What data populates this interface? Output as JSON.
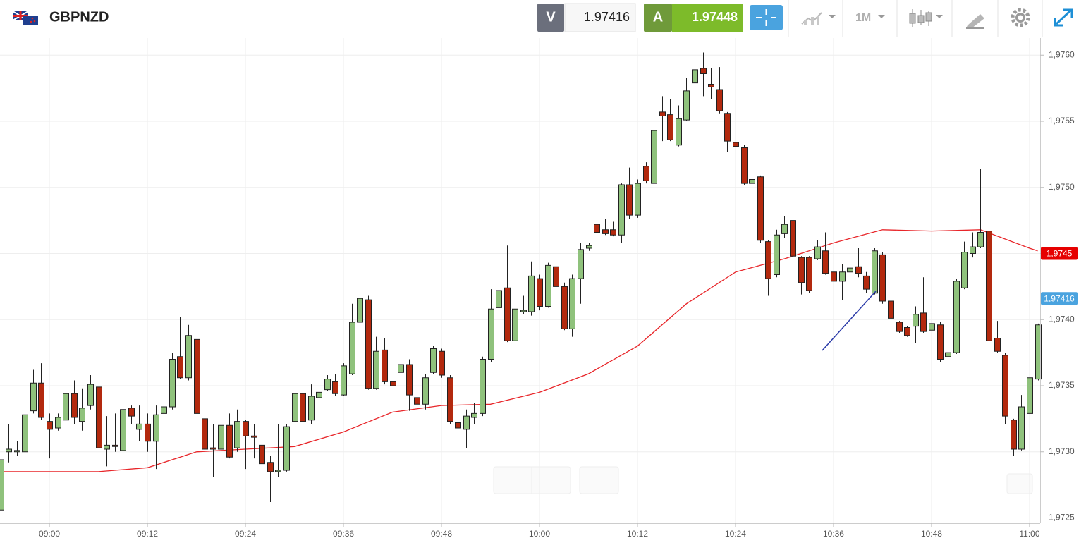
{
  "header": {
    "symbol": "GBPNZD",
    "bid_label": "V",
    "bid": "1.97416",
    "ask_label": "A",
    "ask": "1.97448",
    "timeframe": "1M"
  },
  "chart_data": {
    "type": "candlestick",
    "x": [
      "08:54",
      "08:55",
      "08:56",
      "08:57",
      "08:58",
      "08:59",
      "09:00",
      "09:01",
      "09:02",
      "09:03",
      "09:04",
      "09:05",
      "09:06",
      "09:07",
      "09:08",
      "09:09",
      "09:10",
      "09:11",
      "09:12",
      "09:13",
      "09:14",
      "09:15",
      "09:16",
      "09:17",
      "09:18",
      "09:19",
      "09:20",
      "09:21",
      "09:22",
      "09:23",
      "09:24",
      "09:25",
      "09:26",
      "09:27",
      "09:28",
      "09:29",
      "09:30",
      "09:31",
      "09:32",
      "09:33",
      "09:34",
      "09:35",
      "09:36",
      "09:37",
      "09:38",
      "09:39",
      "09:40",
      "09:41",
      "09:42",
      "09:43",
      "09:44",
      "09:45",
      "09:46",
      "09:47",
      "09:48",
      "09:49",
      "09:50",
      "09:51",
      "09:52",
      "09:53",
      "09:54",
      "09:55",
      "09:56",
      "09:57",
      "09:58",
      "09:59",
      "10:00",
      "10:01",
      "10:02",
      "10:03",
      "10:04",
      "10:05",
      "10:06",
      "10:07",
      "10:08",
      "10:09",
      "10:10",
      "10:11",
      "10:12",
      "10:13",
      "10:14",
      "10:15",
      "10:16",
      "10:17",
      "10:18",
      "10:19",
      "10:20",
      "10:21",
      "10:22",
      "10:23",
      "10:24",
      "10:25",
      "10:26",
      "10:27",
      "10:28",
      "10:29",
      "10:30",
      "10:31",
      "10:32",
      "10:33",
      "10:34",
      "10:35",
      "10:36",
      "10:37",
      "10:38",
      "10:39",
      "10:40",
      "10:41",
      "10:42",
      "10:43",
      "10:44",
      "10:45",
      "10:46",
      "10:47",
      "10:48",
      "10:49",
      "10:50",
      "10:51",
      "10:52",
      "10:53",
      "10:54",
      "10:55",
      "10:56",
      "10:57",
      "10:58",
      "10:59",
      "11:00",
      "11:01"
    ],
    "open": [
      1.97256,
      1.973,
      1.973,
      1.973,
      1.97331,
      1.97352,
      1.97323,
      1.97318,
      1.97324,
      1.97344,
      1.97323,
      1.97335,
      1.97349,
      1.97302,
      1.97305,
      1.97301,
      1.97333,
      1.97317,
      1.97321,
      1.97308,
      1.97329,
      1.97334,
      1.97372,
      1.97356,
      1.97385,
      1.97325,
      1.97303,
      1.97302,
      1.9732,
      1.97303,
      1.97323,
      1.97312,
      1.97305,
      1.97292,
      1.97285,
      1.97286,
      1.97323,
      1.97344,
      1.97324,
      1.97341,
      1.97347,
      1.97353,
      1.97343,
      1.97359,
      1.97398,
      1.97415,
      1.97348,
      1.97377,
      1.97353,
      1.9736,
      1.97366,
      1.97341,
      1.97336,
      1.9736,
      1.97376,
      1.97356,
      1.97322,
      1.97317,
      1.97326,
      1.97329,
      1.9737,
      1.97409,
      1.97424,
      1.97384,
      1.97406,
      1.97406,
      1.97431,
      1.9741,
      1.9744,
      1.97425,
      1.97393,
      1.97431,
      1.97454,
      1.97472,
      1.97468,
      1.97468,
      1.97464,
      1.97502,
      1.97479,
      1.97516,
      1.97503,
      1.97557,
      1.97555,
      1.97532,
      1.97551,
      1.97579,
      1.9759,
      1.97578,
      1.97574,
      1.97556,
      1.97534,
      1.9753,
      1.97503,
      1.97508,
      1.97459,
      1.97434,
      1.97465,
      1.97475,
      1.97447,
      1.97447,
      1.97446,
      1.97452,
      1.97436,
      1.97429,
      1.97436,
      1.9744,
      1.97433,
      1.9742,
      1.97449,
      1.97414,
      1.97398,
      1.97394,
      1.97395,
      1.97405,
      1.97392,
      1.97396,
      1.97372,
      1.97375,
      1.97424,
      1.9745,
      1.97455,
      1.97467,
      1.97386,
      1.97373,
      1.97324,
      1.97302,
      1.97329,
      1.97355
    ],
    "high": [
      1.97295,
      1.97321,
      1.97308,
      1.97329,
      1.97362,
      1.97367,
      1.97329,
      1.97329,
      1.97364,
      1.97354,
      1.97348,
      1.97358,
      1.97351,
      1.97327,
      1.97329,
      1.97333,
      1.97335,
      1.97335,
      1.97329,
      1.97335,
      1.97343,
      1.97375,
      1.97402,
      1.97396,
      1.97387,
      1.97327,
      1.97321,
      1.97327,
      1.97329,
      1.97332,
      1.97324,
      1.97321,
      1.97311,
      1.97297,
      1.97321,
      1.97321,
      1.97359,
      1.97348,
      1.97351,
      1.97354,
      1.97358,
      1.97359,
      1.97367,
      1.97412,
      1.97423,
      1.97418,
      1.97387,
      1.97386,
      1.97372,
      1.97371,
      1.9737,
      1.97359,
      1.97359,
      1.9738,
      1.97378,
      1.97358,
      1.97332,
      1.97332,
      1.97337,
      1.97372,
      1.97423,
      1.97434,
      1.97456,
      1.9741,
      1.97418,
      1.97444,
      1.97434,
      1.97443,
      1.97483,
      1.97428,
      1.97434,
      1.97458,
      1.97458,
      1.97475,
      1.97476,
      1.97474,
      1.97503,
      1.97515,
      1.97506,
      1.97519,
      1.97554,
      1.97569,
      1.97567,
      1.97562,
      1.97583,
      1.97598,
      1.97602,
      1.9759,
      1.97591,
      1.97557,
      1.97544,
      1.97532,
      1.97507,
      1.97509,
      1.9746,
      1.97468,
      1.97478,
      1.97476,
      1.97448,
      1.97448,
      1.9746,
      1.97466,
      1.97439,
      1.97442,
      1.97443,
      1.97454,
      1.97436,
      1.97454,
      1.97451,
      1.97428,
      1.97399,
      1.97395,
      1.9741,
      1.97432,
      1.97411,
      1.97398,
      1.97383,
      1.97431,
      1.97459,
      1.97466,
      1.97514,
      1.97469,
      1.97399,
      1.97375,
      1.97325,
      1.97343,
      1.97364,
      1.97397
    ],
    "low": [
      1.97255,
      1.97292,
      1.97297,
      1.97299,
      1.97329,
      1.97324,
      1.97295,
      1.97316,
      1.97311,
      1.97321,
      1.97316,
      1.97332,
      1.973,
      1.97289,
      1.973,
      1.97295,
      1.97321,
      1.97308,
      1.973,
      1.97287,
      1.97327,
      1.97332,
      1.97355,
      1.97354,
      1.97328,
      1.97283,
      1.97281,
      1.973,
      1.97295,
      1.973,
      1.97287,
      1.97295,
      1.97284,
      1.97262,
      1.97281,
      1.97285,
      1.97321,
      1.97321,
      1.97321,
      1.97337,
      1.97346,
      1.97342,
      1.97342,
      1.97358,
      1.97397,
      1.97347,
      1.97347,
      1.97351,
      1.97347,
      1.97356,
      1.97331,
      1.97333,
      1.97332,
      1.97359,
      1.97356,
      1.97321,
      1.97316,
      1.97303,
      1.97321,
      1.97327,
      1.97368,
      1.97407,
      1.97383,
      1.97382,
      1.97404,
      1.97403,
      1.97407,
      1.97409,
      1.97423,
      1.97392,
      1.97387,
      1.97412,
      1.97452,
      1.97464,
      1.97464,
      1.97463,
      1.97458,
      1.97476,
      1.97477,
      1.97503,
      1.97502,
      1.97535,
      1.97535,
      1.97531,
      1.9755,
      1.97567,
      1.97569,
      1.97567,
      1.97556,
      1.97527,
      1.9752,
      1.97502,
      1.975,
      1.97458,
      1.97418,
      1.97432,
      1.97462,
      1.97447,
      1.97419,
      1.9742,
      1.97445,
      1.97434,
      1.97415,
      1.97415,
      1.97434,
      1.97432,
      1.9742,
      1.97419,
      1.97412,
      1.974,
      1.9739,
      1.97387,
      1.97382,
      1.9739,
      1.97391,
      1.97368,
      1.97371,
      1.97374,
      1.97423,
      1.97447,
      1.97454,
      1.97383,
      1.97375,
      1.97321,
      1.97297,
      1.97301,
      1.97312,
      1.97354
    ],
    "close": [
      1.97294,
      1.97302,
      1.97301,
      1.97328,
      1.97352,
      1.97326,
      1.97317,
      1.97326,
      1.97344,
      1.97326,
      1.97333,
      1.97351,
      1.97303,
      1.97305,
      1.97304,
      1.97332,
      1.97327,
      1.97321,
      1.97308,
      1.97328,
      1.97334,
      1.9737,
      1.97356,
      1.97388,
      1.97329,
      1.97302,
      1.97302,
      1.9732,
      1.97296,
      1.97323,
      1.97312,
      1.97311,
      1.97291,
      1.97285,
      1.97286,
      1.97319,
      1.97344,
      1.97323,
      1.97342,
      1.97345,
      1.97355,
      1.97344,
      1.97365,
      1.97398,
      1.97416,
      1.97348,
      1.97376,
      1.97353,
      1.9735,
      1.97366,
      1.97343,
      1.97336,
      1.97356,
      1.97378,
      1.97358,
      1.97323,
      1.97318,
      1.97327,
      1.97329,
      1.9737,
      1.97408,
      1.97422,
      1.97384,
      1.97408,
      1.97407,
      1.97433,
      1.9741,
      1.97441,
      1.97425,
      1.97393,
      1.97431,
      1.97453,
      1.97456,
      1.97466,
      1.97465,
      1.97464,
      1.97502,
      1.97479,
      1.97503,
      1.97505,
      1.97543,
      1.97554,
      1.97536,
      1.97552,
      1.97573,
      1.97589,
      1.97586,
      1.97576,
      1.97558,
      1.97535,
      1.97531,
      1.97503,
      1.97506,
      1.9746,
      1.97431,
      1.97464,
      1.97472,
      1.97448,
      1.97428,
      1.97422,
      1.97455,
      1.97435,
      1.97429,
      1.97436,
      1.97439,
      1.97435,
      1.97423,
      1.97452,
      1.97414,
      1.97401,
      1.97391,
      1.97388,
      1.97404,
      1.97391,
      1.97397,
      1.9737,
      1.97375,
      1.97429,
      1.97451,
      1.97455,
      1.97466,
      1.97384,
      1.97376,
      1.97327,
      1.97302,
      1.97334,
      1.97356,
      1.97396
    ],
    "up_color": "#8fc27c",
    "down_color": "#b3290e",
    "ma": {
      "color": "#e8262a",
      "x": [
        "08:54",
        "09:00",
        "09:06",
        "09:12",
        "09:18",
        "09:24",
        "09:30",
        "09:36",
        "09:42",
        "09:48",
        "09:54",
        "10:00",
        "10:06",
        "10:12",
        "10:18",
        "10:24",
        "10:30",
        "10:36",
        "10:42",
        "10:48",
        "10:54",
        "11:00",
        "11:01"
      ],
      "values": [
        1.97285,
        1.97285,
        1.97285,
        1.97288,
        1.973,
        1.97302,
        1.97304,
        1.97315,
        1.9733,
        1.97335,
        1.97336,
        1.97345,
        1.97359,
        1.9738,
        1.97412,
        1.97436,
        1.97446,
        1.97458,
        1.97468,
        1.97467,
        1.97468,
        1.97454,
        1.97452
      ]
    },
    "price_tags": [
      {
        "value": 1.9745,
        "label": "1,9745",
        "color": "#e60000"
      },
      {
        "value": 1.97416,
        "label": "1,97416",
        "color": "#4aa3df"
      }
    ],
    "xlim": [
      "08:53:57",
      "11:01:18"
    ],
    "xticks": [
      "09:00",
      "09:12",
      "09:24",
      "09:36",
      "09:48",
      "10:00",
      "10:12",
      "10:24",
      "10:36",
      "10:48",
      "11:00"
    ],
    "ylim": [
      1.97246,
      1.97614
    ],
    "yticks": [
      {
        "value": 1.9725,
        "label": "1,9725"
      },
      {
        "value": 1.973,
        "label": "1,9730"
      },
      {
        "value": 1.9735,
        "label": "1,9735"
      },
      {
        "value": 1.974,
        "label": "1,9740"
      },
      {
        "value": 1.9745,
        "label": "1,9745"
      },
      {
        "value": 1.975,
        "label": "1,9750"
      },
      {
        "value": 1.9755,
        "label": "1,9755"
      },
      {
        "value": 1.976,
        "label": "1,9760"
      }
    ],
    "grid": true
  }
}
